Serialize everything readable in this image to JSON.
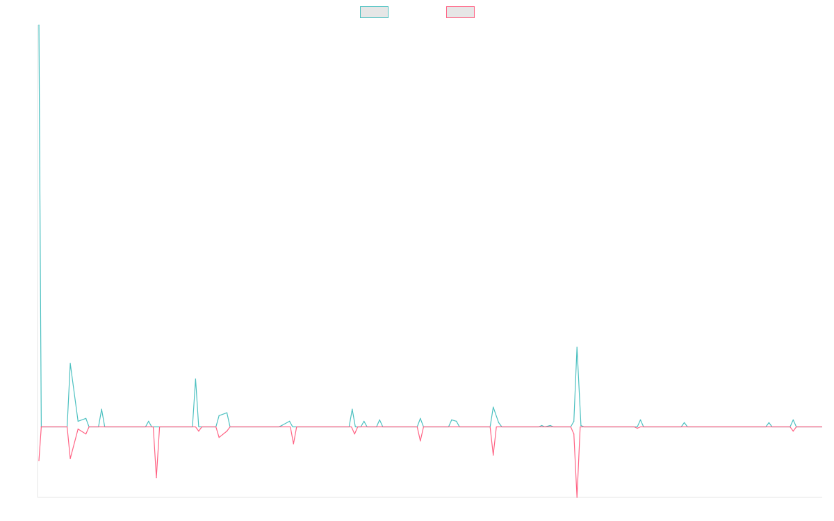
{
  "chart_data": {
    "type": "line",
    "title": "",
    "xlabel": "",
    "ylabel": "",
    "grid": false,
    "legend_position": "top-center",
    "ylim": [
      -100,
      570
    ],
    "x_count": 100,
    "series": [
      {
        "name": "",
        "color": "#4bc0c0",
        "fill": "#e6e6e6",
        "points": [
          {
            "x": 0,
            "y": 570
          },
          {
            "x": 0.3,
            "y": 0
          },
          {
            "x": 4,
            "y": 90
          },
          {
            "x": 5,
            "y": 8
          },
          {
            "x": 6,
            "y": 12
          },
          {
            "x": 8,
            "y": 25
          },
          {
            "x": 14,
            "y": 8
          },
          {
            "x": 20,
            "y": 68
          },
          {
            "x": 23,
            "y": 16
          },
          {
            "x": 24,
            "y": 20
          },
          {
            "x": 31,
            "y": 2
          },
          {
            "x": 32,
            "y": 8
          },
          {
            "x": 40,
            "y": 25
          },
          {
            "x": 41.5,
            "y": 8
          },
          {
            "x": 43.5,
            "y": 10
          },
          {
            "x": 48.7,
            "y": 12
          },
          {
            "x": 52.7,
            "y": 10
          },
          {
            "x": 53.3,
            "y": 8
          },
          {
            "x": 58,
            "y": 28
          },
          {
            "x": 58.7,
            "y": 6
          },
          {
            "x": 64.2,
            "y": 2
          },
          {
            "x": 65.3,
            "y": 2
          },
          {
            "x": 68.3,
            "y": 8
          },
          {
            "x": 68.7,
            "y": 113
          },
          {
            "x": 69.2,
            "y": 2
          },
          {
            "x": 76.8,
            "y": 10
          },
          {
            "x": 82.4,
            "y": 6
          },
          {
            "x": 93.2,
            "y": 6
          },
          {
            "x": 96.3,
            "y": 10
          }
        ]
      },
      {
        "name": "",
        "color": "#ff6384",
        "fill": "#e6e6e6",
        "points": [
          {
            "x": 0,
            "y": -48
          },
          {
            "x": 0.3,
            "y": 0
          },
          {
            "x": 4,
            "y": -45
          },
          {
            "x": 5,
            "y": -3
          },
          {
            "x": 6,
            "y": -10
          },
          {
            "x": 15,
            "y": -72
          },
          {
            "x": 20.4,
            "y": -6
          },
          {
            "x": 23,
            "y": -15
          },
          {
            "x": 24,
            "y": -6
          },
          {
            "x": 32.5,
            "y": -24
          },
          {
            "x": 40.3,
            "y": -10
          },
          {
            "x": 48.7,
            "y": -20
          },
          {
            "x": 58,
            "y": -40
          },
          {
            "x": 68.3,
            "y": -10
          },
          {
            "x": 68.7,
            "y": -100
          },
          {
            "x": 76.4,
            "y": -2
          },
          {
            "x": 96.3,
            "y": -6
          }
        ]
      }
    ]
  }
}
